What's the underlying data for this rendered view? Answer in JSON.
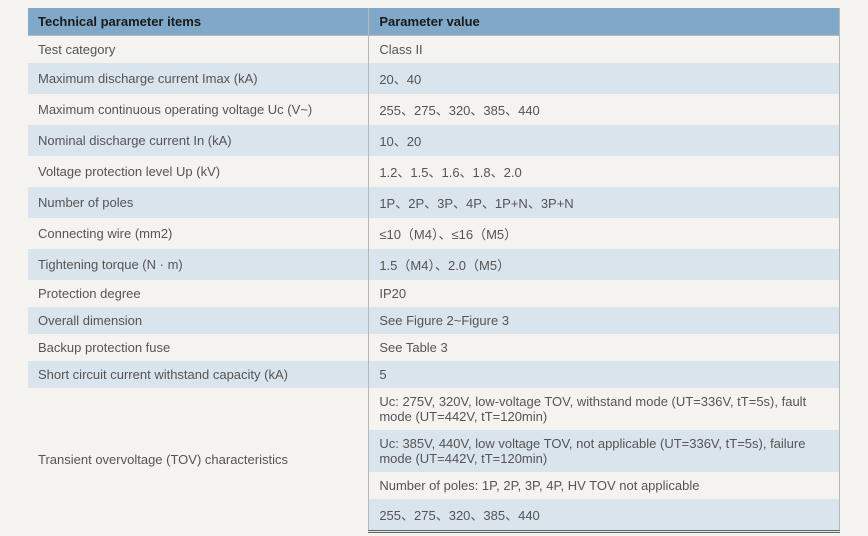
{
  "headers": {
    "col1": "Technical parameter items",
    "col2": "Parameter value"
  },
  "rows": [
    {
      "item": "Test category",
      "value": "Class II"
    },
    {
      "item": "Maximum discharge current Imax (kA)",
      "value": "20、40"
    },
    {
      "item": "Maximum continuous operating voltage Uc (V~)",
      "value": "255、275、320、385、440"
    },
    {
      "item": "Nominal discharge current In (kA)",
      "value": "10、20"
    },
    {
      "item": "Voltage protection level Up (kV)",
      "value": "1.2、1.5、1.6、1.8、2.0"
    },
    {
      "item": "Number of poles",
      "value": "1P、2P、3P、4P、1P+N、3P+N"
    },
    {
      "item": "Connecting wire (mm2)",
      "value": "≤10（M4）、≤16（M5）"
    },
    {
      "item": "Tightening torque (N · m)",
      "value": "1.5（M4）、2.0（M5）"
    },
    {
      "item": "Protection degree",
      "value": "IP20"
    },
    {
      "item": "Overall dimension",
      "value": "See Figure 2~Figure 3"
    },
    {
      "item": "Backup protection fuse",
      "value": "See Table 3"
    },
    {
      "item": "Short circuit current withstand capacity (kA)",
      "value": "5"
    }
  ],
  "tov": {
    "label": "Transient overvoltage (TOV) characteristics",
    "sub": [
      "Uc: 275V, 320V, low-voltage TOV, withstand mode (UT=336V, tT=5s), fault mode (UT=442V, tT=120min)",
      "Uc: 385V, 440V, low voltage TOV, not applicable (UT=336V, tT=5s), failure mode (UT=442V, tT=120min)",
      "Number of poles: 1P, 2P, 3P, 4P, HV TOV not applicable",
      "255、275、320、385、440"
    ]
  },
  "styling": {
    "header_bg": "#7fa8c9",
    "row_odd_bg": "#f5f3ef",
    "row_even_bg": "#d9e4ed",
    "border_color": "#b8b8b8",
    "text_color": "#555",
    "header_text_color": "#1a1a1a",
    "font_size": 13,
    "col1_width_percent": 42,
    "page_bg": "#f5f3ef"
  }
}
